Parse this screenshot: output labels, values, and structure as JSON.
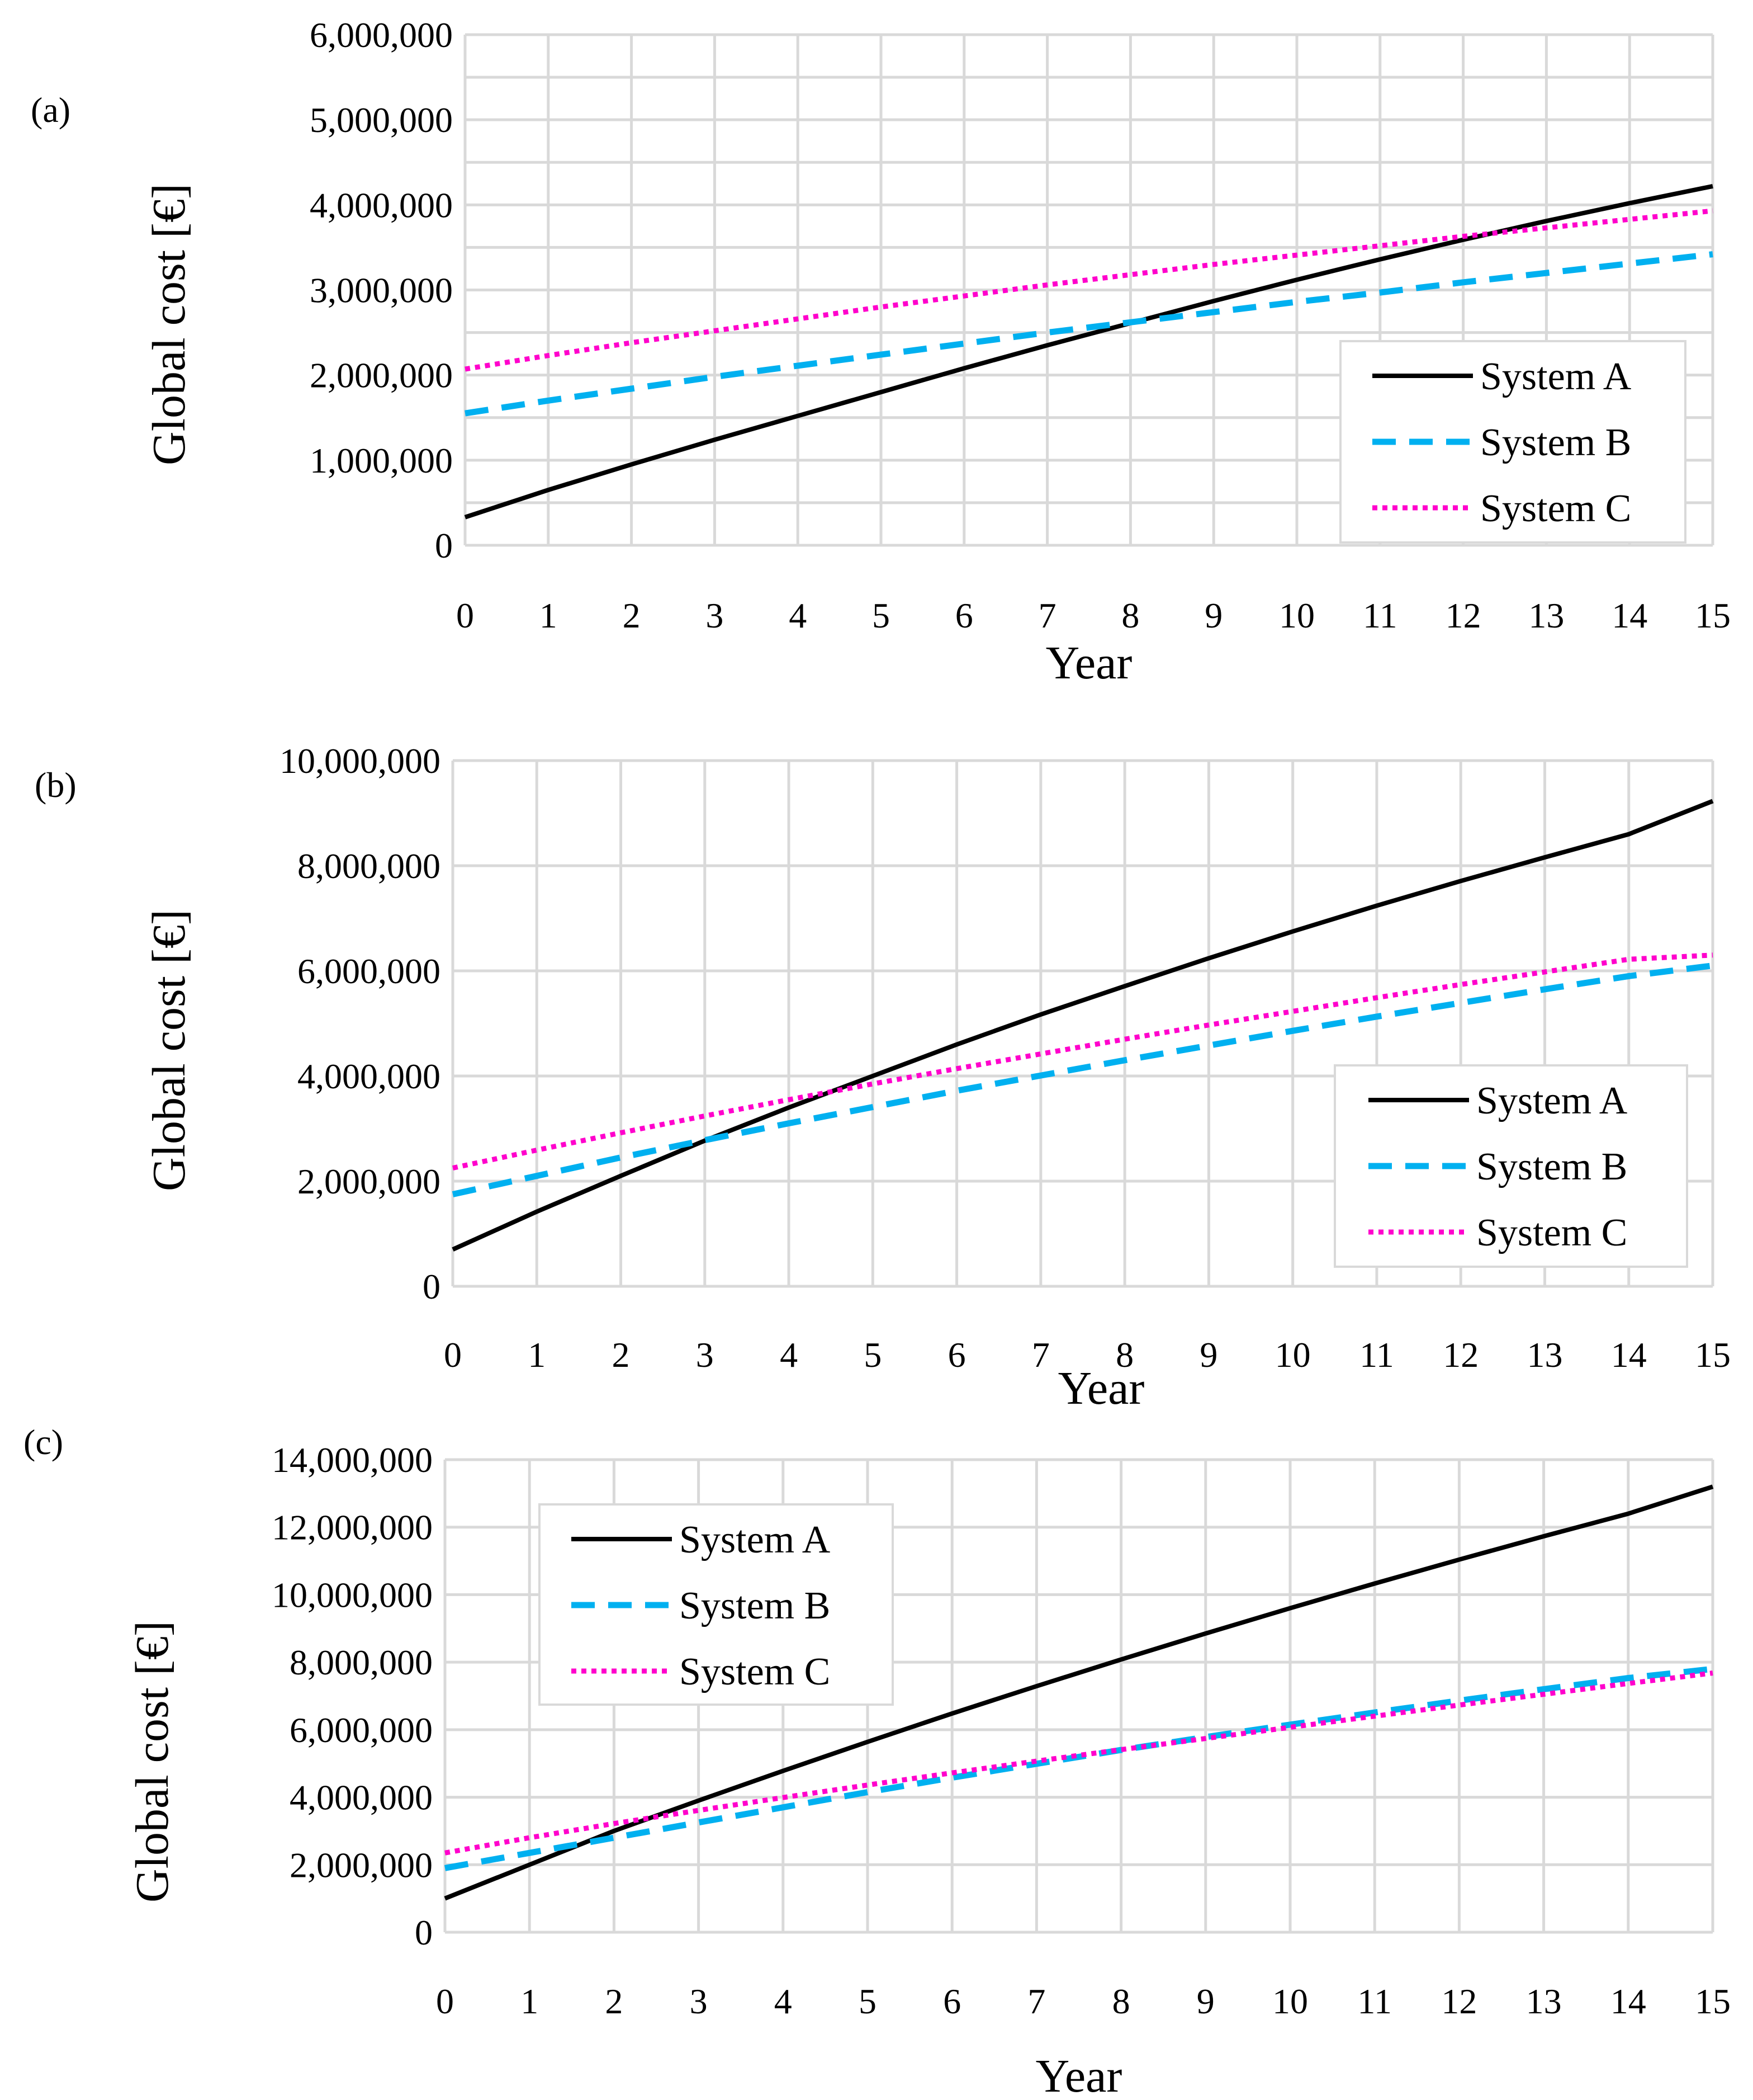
{
  "colors": {
    "system_a": "#000000",
    "system_b": "#00b0f0",
    "system_c": "#ff00cc",
    "grid": "#d9d9d9"
  },
  "chart_data": [
    {
      "type": "line",
      "panel_label": "(a)",
      "xlabel": "Year",
      "ylabel": "Global cost [€]",
      "x": [
        0,
        1,
        2,
        3,
        4,
        5,
        6,
        7,
        8,
        9,
        10,
        11,
        12,
        13,
        14,
        15
      ],
      "xlim": [
        0,
        15
      ],
      "ylim": [
        0,
        6000000
      ],
      "ytick_values": [
        0,
        1000000,
        2000000,
        3000000,
        4000000,
        5000000,
        6000000
      ],
      "ytick_labels": [
        "0",
        "1,000,000",
        "2,000,000",
        "3,000,000",
        "4,000,000",
        "5,000,000",
        "6,000,000"
      ],
      "xtick_labels": [
        "0",
        "1",
        "2",
        "3",
        "4",
        "5",
        "6",
        "7",
        "8",
        "9",
        "10",
        "11",
        "12",
        "13",
        "14",
        "15"
      ],
      "grid": true,
      "legend_position": "bottom-right",
      "series": [
        {
          "name": "System A",
          "style": "solid",
          "values": [
            330000,
            650000,
            950000,
            1240000,
            1520000,
            1800000,
            2080000,
            2350000,
            2610000,
            2870000,
            3120000,
            3360000,
            3590000,
            3810000,
            4020000,
            4220000
          ]
        },
        {
          "name": "System B",
          "style": "dashed",
          "values": [
            1550000,
            1700000,
            1840000,
            1980000,
            2110000,
            2240000,
            2370000,
            2500000,
            2620000,
            2740000,
            2860000,
            2970000,
            3090000,
            3200000,
            3310000,
            3420000
          ]
        },
        {
          "name": "System C",
          "style": "dotted",
          "values": [
            2070000,
            2230000,
            2380000,
            2520000,
            2660000,
            2800000,
            2930000,
            3060000,
            3180000,
            3300000,
            3410000,
            3520000,
            3630000,
            3730000,
            3830000,
            3930000
          ]
        }
      ]
    },
    {
      "type": "line",
      "panel_label": "(b)",
      "xlabel": "Year",
      "ylabel": "Global cost [€]",
      "x": [
        0,
        1,
        2,
        3,
        4,
        5,
        6,
        7,
        8,
        9,
        10,
        11,
        12,
        13,
        14,
        15
      ],
      "xlim": [
        0,
        15
      ],
      "ylim": [
        0,
        10000000
      ],
      "ytick_values": [
        0,
        2000000,
        4000000,
        6000000,
        8000000,
        10000000
      ],
      "ytick_labels": [
        "0",
        "2,000,000",
        "4,000,000",
        "6,000,000",
        "8,000,000",
        "10,000,000"
      ],
      "xtick_labels": [
        "0",
        "1",
        "2",
        "3",
        "4",
        "5",
        "6",
        "7",
        "8",
        "9",
        "10",
        "11",
        "12",
        "13",
        "14",
        "15"
      ],
      "grid": true,
      "legend_position": "bottom-right",
      "series": [
        {
          "name": "System A",
          "style": "solid",
          "values": [
            700000,
            1420000,
            2100000,
            2770000,
            3400000,
            4000000,
            4600000,
            5170000,
            5710000,
            6240000,
            6750000,
            7240000,
            7710000,
            8160000,
            8600000,
            9230000
          ]
        },
        {
          "name": "System B",
          "style": "dashed",
          "values": [
            1750000,
            2100000,
            2450000,
            2780000,
            3100000,
            3410000,
            3720000,
            4010000,
            4300000,
            4580000,
            4860000,
            5130000,
            5390000,
            5650000,
            5900000,
            6100000
          ]
        },
        {
          "name": "System C",
          "style": "dotted",
          "values": [
            2250000,
            2590000,
            2920000,
            3240000,
            3550000,
            3850000,
            4140000,
            4420000,
            4700000,
            4970000,
            5230000,
            5490000,
            5740000,
            5980000,
            6220000,
            6300000
          ]
        }
      ]
    },
    {
      "type": "line",
      "panel_label": "(c)",
      "xlabel": "Year",
      "ylabel": "Global cost [€]",
      "x": [
        0,
        1,
        2,
        3,
        4,
        5,
        6,
        7,
        8,
        9,
        10,
        11,
        12,
        13,
        14,
        15
      ],
      "xlim": [
        0,
        15
      ],
      "ylim": [
        0,
        14000000
      ],
      "ytick_values": [
        0,
        2000000,
        4000000,
        6000000,
        8000000,
        10000000,
        12000000,
        14000000
      ],
      "ytick_labels": [
        "0",
        "2,000,000",
        "4,000,000",
        "6,000,000",
        "8,000,000",
        "10,000,000",
        "12,000,000",
        "14,000,000"
      ],
      "xtick_labels": [
        "0",
        "1",
        "2",
        "3",
        "4",
        "5",
        "6",
        "7",
        "8",
        "9",
        "10",
        "11",
        "12",
        "13",
        "14",
        "15"
      ],
      "grid": true,
      "legend_position": "top-left",
      "series": [
        {
          "name": "System A",
          "style": "solid",
          "values": [
            1000000,
            2000000,
            3000000,
            3900000,
            4780000,
            5640000,
            6480000,
            7290000,
            8080000,
            8850000,
            9600000,
            10330000,
            11040000,
            11730000,
            12400000,
            13200000
          ]
        },
        {
          "name": "System B",
          "style": "dashed",
          "values": [
            1900000,
            2350000,
            2800000,
            3250000,
            3700000,
            4150000,
            4580000,
            4990000,
            5400000,
            5780000,
            6150000,
            6510000,
            6860000,
            7200000,
            7530000,
            7800000
          ]
        },
        {
          "name": "System C",
          "style": "dotted",
          "values": [
            2350000,
            2800000,
            3220000,
            3610000,
            3990000,
            4360000,
            4720000,
            5070000,
            5410000,
            5740000,
            6070000,
            6400000,
            6730000,
            7050000,
            7370000,
            7680000
          ]
        }
      ]
    }
  ]
}
